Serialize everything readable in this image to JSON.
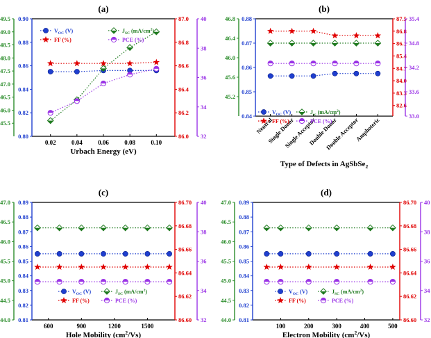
{
  "colors": {
    "voc": "#1f3fcf",
    "jsc": "#1f7a1f",
    "ff": "#e00000",
    "pce": "#9a33e6",
    "jsc_axis": "#2a8c2a",
    "voc_axis": "#1f3fcf",
    "ff_axis": "#e00000",
    "pce_axis": "#9a33e6"
  },
  "legend": {
    "voc": "V",
    "voc_sub": "OC",
    "voc_unit": " (V)",
    "jsc": "J",
    "jsc_sub": "SC",
    "jsc_sub_b": "sc",
    "jsc_unit": " (mA/cm",
    "jsc_unit_sup": "2",
    "jsc_unit_end": ")",
    "ff": "FF (%)",
    "pce": "PCE (%)"
  },
  "chart_data": [
    {
      "id": "a",
      "panel_label": "(a)",
      "type": "line",
      "xlabel": "Urbach Energy (eV)",
      "categories": [
        "0.02",
        "0.04",
        "0.06",
        "0.08",
        "0.10"
      ],
      "ylim_jsc": [
        45.0,
        49.5
      ],
      "jsc_ticks": [
        "45.5",
        "46.0",
        "46.5",
        "47.0",
        "47.5",
        "48.0",
        "48.5",
        "49.0",
        "49.5"
      ],
      "ylim_voc": [
        0.8,
        0.9
      ],
      "voc_ticks": [
        "0.80",
        "0.82",
        "0.84",
        "0.86",
        "0.88",
        "0.90"
      ],
      "ylim_ff": [
        86.0,
        87.0
      ],
      "ff_ticks": [
        "86.0",
        "86.2",
        "86.4",
        "86.6",
        "86.8",
        "87.0"
      ],
      "ylim_pce": [
        32,
        40
      ],
      "pce_ticks": [
        "32",
        "34",
        "36",
        "38",
        "40"
      ],
      "series": [
        {
          "name": "Voc (V)",
          "key": "voc",
          "values": [
            0.855,
            0.855,
            0.856,
            0.856,
            0.856
          ]
        },
        {
          "name": "Jsc (mA/cm2)",
          "key": "jsc",
          "values": [
            45.6,
            46.4,
            47.6,
            48.4,
            49.0
          ]
        },
        {
          "name": "FF (%)",
          "key": "ff",
          "values": [
            86.62,
            86.62,
            86.62,
            86.62,
            86.63
          ]
        },
        {
          "name": "PCE (%)",
          "key": "pce",
          "values": [
            33.6,
            34.4,
            35.6,
            36.2,
            36.6
          ]
        }
      ]
    },
    {
      "id": "b",
      "panel_label": "(b)",
      "type": "line",
      "xlabel": "Type of Defects in AgSbSe",
      "xlabel_sub": "2",
      "categories": [
        "Neutral",
        "Single Donor",
        "Single Acceptor",
        "Double Donor",
        "Double Acceptor",
        "Amphoteric"
      ],
      "ylim_jsc": [
        44.8,
        46.8
      ],
      "jsc_ticks": [
        "45.2",
        "45.6",
        "46.0",
        "46.4",
        "46.8"
      ],
      "ylim_voc": [
        0.84,
        0.88
      ],
      "voc_ticks": [
        "0.84",
        "0.85",
        "0.86",
        "0.87",
        "0.88"
      ],
      "ylim_ff": [
        82.0,
        87.5
      ],
      "ff_ticks": [
        "82.6",
        "83.3",
        "84.0",
        "84.7",
        "85.4",
        "86.1",
        "86.8",
        "87.5"
      ],
      "ylim_pce": [
        33.0,
        35.4
      ],
      "pce_ticks": [
        "33.0",
        "33.6",
        "34.2",
        "34.8",
        "35.4"
      ],
      "series": [
        {
          "name": "Voc (V)",
          "key": "voc",
          "values": [
            0.8565,
            0.8565,
            0.8565,
            0.8575,
            0.8575,
            0.8575
          ]
        },
        {
          "name": "Jsc (mA/cm2)",
          "key": "jsc",
          "values": [
            46.3,
            46.3,
            46.3,
            46.3,
            46.3,
            46.3
          ]
        },
        {
          "name": "FF (%)",
          "key": "ff",
          "values": [
            86.8,
            86.8,
            86.8,
            86.55,
            86.55,
            86.55
          ]
        },
        {
          "name": "PCE (%)",
          "key": "pce",
          "values": [
            34.3,
            34.3,
            34.3,
            34.3,
            34.3,
            34.3
          ]
        }
      ]
    },
    {
      "id": "c",
      "panel_label": "(c)",
      "type": "line",
      "xlabel": "Hole Mobility (cm",
      "xlabel_sup": "2",
      "xlabel_end": "/Vs)",
      "xlim": [
        450,
        1750
      ],
      "x_ticks": [
        "600",
        "900",
        "1200",
        "1500"
      ],
      "x_tick_values": [
        600,
        900,
        1200,
        1500
      ],
      "x": [
        500,
        700,
        900,
        1100,
        1300,
        1500,
        1700
      ],
      "ylim_jsc": [
        44.0,
        47.0
      ],
      "jsc_ticks": [
        "44.0",
        "44.5",
        "45.0",
        "45.5",
        "46.0",
        "46.5",
        "47.0"
      ],
      "ylim_voc": [
        0.81,
        0.89
      ],
      "voc_ticks": [
        "0.81",
        "0.82",
        "0.83",
        "0.84",
        "0.85",
        "0.86",
        "0.87",
        "0.88",
        "0.89"
      ],
      "ylim_ff": [
        86.6,
        86.7
      ],
      "ff_ticks": [
        "86.60",
        "86.62",
        "86.64",
        "86.66",
        "86.68",
        "86.70"
      ],
      "ylim_pce": [
        32,
        40
      ],
      "pce_ticks": [
        "32",
        "34",
        "36",
        "38",
        "40"
      ],
      "series": [
        {
          "name": "Voc (V)",
          "key": "voc",
          "values": [
            0.855,
            0.855,
            0.855,
            0.855,
            0.855,
            0.855,
            0.855
          ]
        },
        {
          "name": "Jsc (mA/cm2)",
          "key": "jsc",
          "values": [
            46.35,
            46.35,
            46.35,
            46.35,
            46.35,
            46.35,
            46.35
          ]
        },
        {
          "name": "FF (%)",
          "key": "ff",
          "values": [
            86.645,
            86.645,
            86.645,
            86.645,
            86.645,
            86.645,
            86.645
          ]
        },
        {
          "name": "PCE (%)",
          "key": "pce",
          "values": [
            34.6,
            34.6,
            34.6,
            34.6,
            34.6,
            34.6,
            34.6
          ]
        }
      ]
    },
    {
      "id": "d",
      "panel_label": "(d)",
      "type": "line",
      "xlabel": "Electron Mobility (cm",
      "xlabel_sup": "2",
      "xlabel_end": "/Vs)",
      "xlim": [
        0,
        525
      ],
      "x_ticks": [
        "100",
        "200",
        "300",
        "400",
        "500"
      ],
      "x_tick_values": [
        100,
        200,
        300,
        400,
        500
      ],
      "x": [
        50,
        100,
        200,
        300,
        420,
        500
      ],
      "ylim_jsc": [
        44.0,
        47.0
      ],
      "jsc_ticks": [
        "44.0",
        "44.5",
        "45.0",
        "45.5",
        "46.0",
        "46.5",
        "47.0"
      ],
      "ylim_voc": [
        0.81,
        0.89
      ],
      "voc_ticks": [
        "0.81",
        "0.82",
        "0.83",
        "0.84",
        "0.85",
        "0.86",
        "0.87",
        "0.88",
        "0.89"
      ],
      "ylim_ff": [
        86.6,
        86.7
      ],
      "ff_ticks": [
        "86.60",
        "86.62",
        "86.64",
        "86.66",
        "86.68",
        "86.70"
      ],
      "ylim_pce": [
        32,
        40
      ],
      "pce_ticks": [
        "32",
        "34",
        "36",
        "38",
        "40"
      ],
      "series": [
        {
          "name": "Voc (V)",
          "key": "voc",
          "values": [
            0.855,
            0.855,
            0.855,
            0.855,
            0.855,
            0.855
          ]
        },
        {
          "name": "Jsc (mA/cm2)",
          "key": "jsc",
          "values": [
            46.35,
            46.35,
            46.35,
            46.35,
            46.35,
            46.35
          ]
        },
        {
          "name": "FF (%)",
          "key": "ff",
          "values": [
            86.645,
            86.645,
            86.645,
            86.645,
            86.645,
            86.645
          ]
        },
        {
          "name": "PCE (%)",
          "key": "pce",
          "values": [
            34.6,
            34.6,
            34.6,
            34.6,
            34.6,
            34.6
          ]
        }
      ]
    }
  ]
}
